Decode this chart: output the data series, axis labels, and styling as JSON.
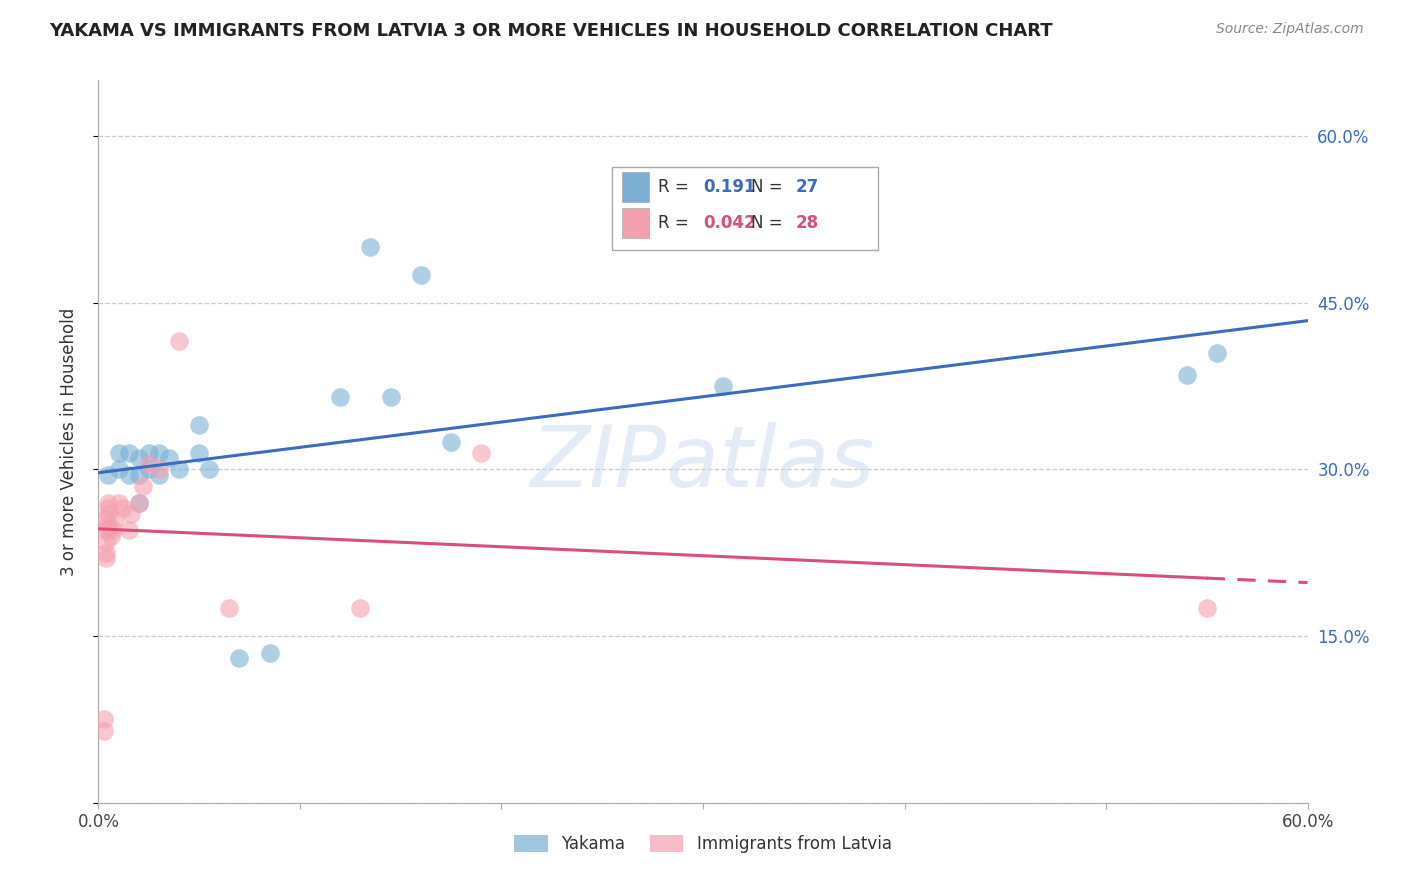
{
  "title": "YAKAMA VS IMMIGRANTS FROM LATVIA 3 OR MORE VEHICLES IN HOUSEHOLD CORRELATION CHART",
  "source": "Source: ZipAtlas.com",
  "ylabel": "3 or more Vehicles in Household",
  "xlim": [
    0.0,
    0.6
  ],
  "ylim": [
    0.0,
    0.65
  ],
  "xticks": [
    0.0,
    0.1,
    0.2,
    0.3,
    0.4,
    0.5,
    0.6
  ],
  "yticks": [
    0.0,
    0.15,
    0.3,
    0.45,
    0.6
  ],
  "right_ytick_labels": [
    "",
    "15.0%",
    "30.0%",
    "45.0%",
    "60.0%"
  ],
  "xtick_labels": [
    "0.0%",
    "",
    "",
    "",
    "",
    "",
    "60.0%"
  ],
  "legend_blue_r": "0.191",
  "legend_blue_n": "27",
  "legend_pink_r": "0.042",
  "legend_pink_n": "28",
  "legend_labels": [
    "Yakama",
    "Immigrants from Latvia"
  ],
  "blue_color": "#7bafd4",
  "pink_color": "#f4a0b0",
  "blue_line_color": "#3a6bbf",
  "pink_line_color": "#d94f7a",
  "watermark": "ZIPatlas",
  "blue_x": [
    0.005,
    0.01,
    0.01,
    0.015,
    0.015,
    0.02,
    0.02,
    0.02,
    0.025,
    0.025,
    0.03,
    0.03,
    0.035,
    0.04,
    0.05,
    0.05,
    0.055,
    0.07,
    0.085,
    0.12,
    0.135,
    0.145,
    0.16,
    0.175,
    0.31,
    0.54,
    0.555
  ],
  "blue_y": [
    0.295,
    0.315,
    0.3,
    0.315,
    0.295,
    0.31,
    0.295,
    0.27,
    0.315,
    0.3,
    0.315,
    0.295,
    0.31,
    0.3,
    0.315,
    0.34,
    0.3,
    0.13,
    0.135,
    0.365,
    0.5,
    0.365,
    0.475,
    0.325,
    0.375,
    0.385,
    0.405
  ],
  "pink_x": [
    0.003,
    0.003,
    0.004,
    0.004,
    0.004,
    0.004,
    0.004,
    0.005,
    0.005,
    0.005,
    0.005,
    0.005,
    0.006,
    0.007,
    0.008,
    0.01,
    0.012,
    0.015,
    0.016,
    0.02,
    0.022,
    0.025,
    0.03,
    0.04,
    0.065,
    0.13,
    0.19,
    0.55
  ],
  "pink_y": [
    0.065,
    0.075,
    0.22,
    0.225,
    0.235,
    0.245,
    0.255,
    0.245,
    0.25,
    0.26,
    0.265,
    0.27,
    0.24,
    0.245,
    0.255,
    0.27,
    0.265,
    0.245,
    0.26,
    0.27,
    0.285,
    0.305,
    0.3,
    0.415,
    0.175,
    0.175,
    0.315,
    0.175
  ],
  "grid_color": "#cccccc",
  "bg_color": "#ffffff",
  "watermark_color": "#c8d8ee",
  "watermark_alpha": 0.5
}
